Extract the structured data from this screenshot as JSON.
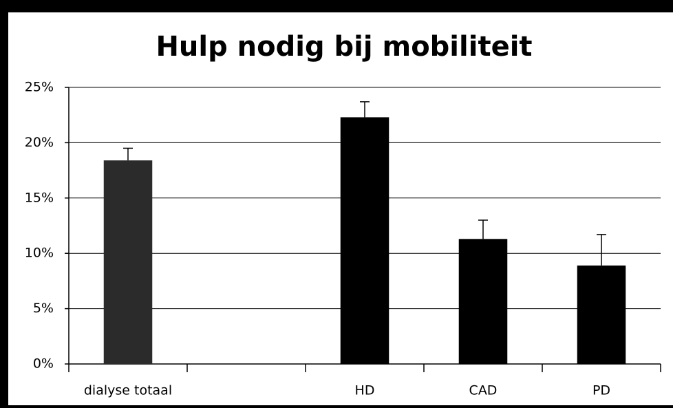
{
  "chart_data": {
    "type": "bar",
    "title": "Hulp nodig bij mobiliteit",
    "categories": [
      "dialyse totaal",
      null,
      "HD",
      "CAD",
      "PD"
    ],
    "values": [
      18.4,
      null,
      22.3,
      11.3,
      8.9
    ],
    "errors": [
      1.1,
      null,
      1.4,
      1.7,
      2.8
    ],
    "colors": [
      "#2b2b2b",
      null,
      "#000000",
      "#000000",
      "#000000"
    ],
    "ylim": [
      0,
      25
    ],
    "yticks": [
      {
        "value": 0,
        "label": "0%"
      },
      {
        "value": 5,
        "label": "5%"
      },
      {
        "value": 10,
        "label": "10%"
      },
      {
        "value": 15,
        "label": "15%"
      },
      {
        "value": 20,
        "label": "20%"
      },
      {
        "value": 25,
        "label": "25%"
      }
    ],
    "grid": true
  }
}
